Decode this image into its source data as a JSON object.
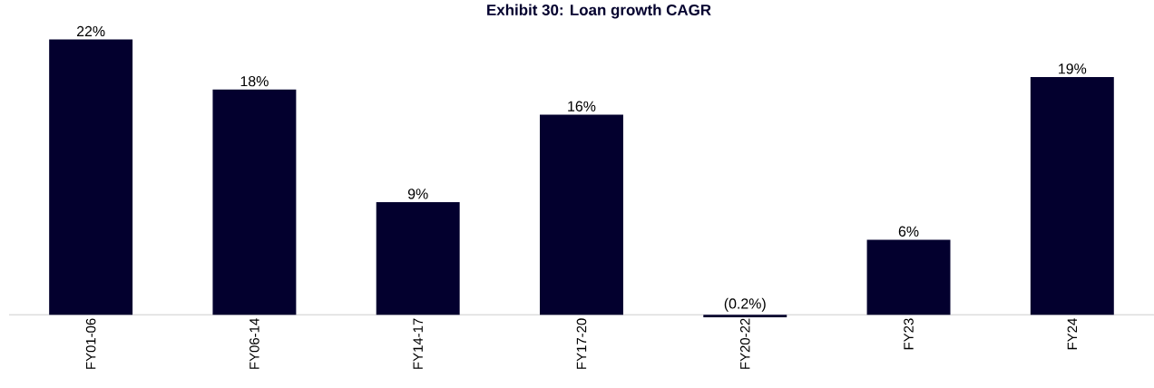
{
  "chart_data": {
    "type": "bar",
    "title": "Exhibit 30: Loan growth CAGR",
    "categories": [
      "FY01-06",
      "FY06-14",
      "FY14-17",
      "FY17-20",
      "FY20-22",
      "FY23",
      "FY24"
    ],
    "values": [
      22,
      18,
      9,
      16,
      -0.2,
      6,
      19
    ],
    "value_labels": [
      "22%",
      "18%",
      "9%",
      "16%",
      "(0.2%)",
      "6%",
      "19%"
    ],
    "color": "#03002e"
  }
}
